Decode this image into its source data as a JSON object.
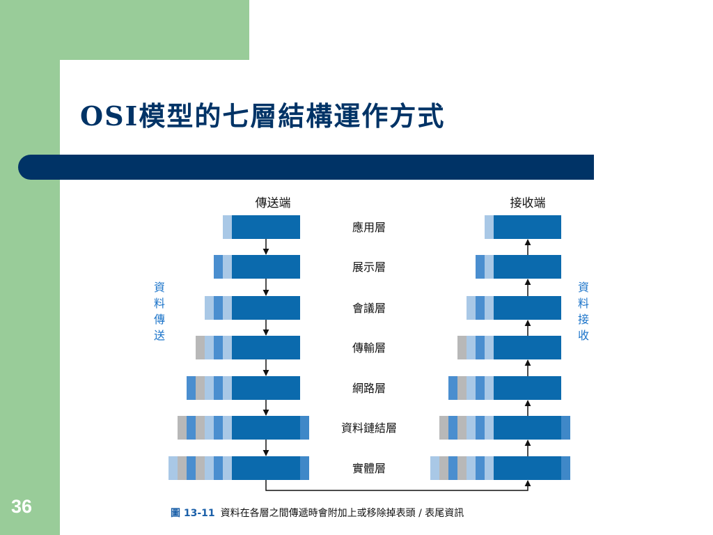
{
  "slide": {
    "title": "OSI模型的七層結構運作方式",
    "number": "36"
  },
  "diagram": {
    "sender_label": "傳送端",
    "receiver_label": "接收端",
    "left_side_label": [
      "資",
      "料",
      "傳",
      "送"
    ],
    "right_side_label": [
      "資",
      "料",
      "接",
      "收"
    ],
    "layers": [
      "應用層",
      "展示層",
      "會議層",
      "傳輸層",
      "網路層",
      "資料鏈結層",
      "實體層"
    ],
    "colors": {
      "data": "#0b6aad",
      "header_light": "#a9c8e6",
      "header_mid": "#4a8ecf",
      "header_gray": "#b8b8b8",
      "trailer": "#3f88c8",
      "side_label": "#1a73c9"
    }
  },
  "caption": {
    "figure": "圖 13-11",
    "text": "資料在各層之間傳遞時會附加上或移除掉表頭 / 表尾資訊"
  }
}
